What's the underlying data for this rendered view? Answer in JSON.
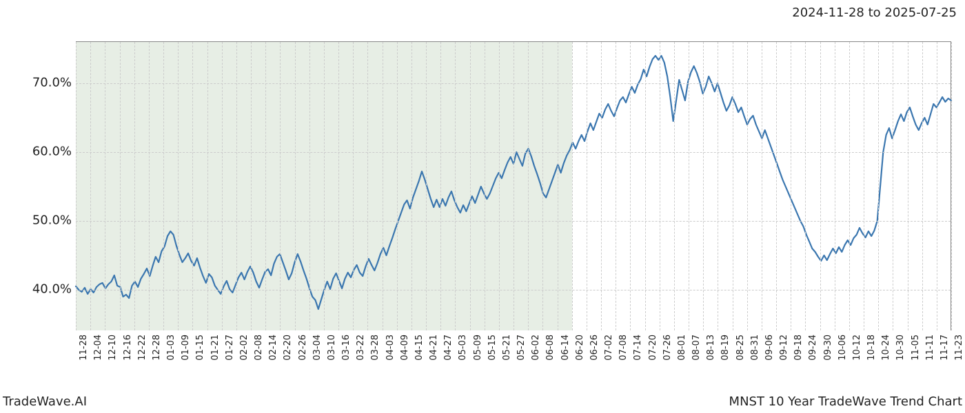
{
  "header": {
    "date_range": "2024-11-28 to 2025-07-25"
  },
  "footer": {
    "left": "TradeWave.AI",
    "right": "MNST 10 Year TradeWave Trend Chart"
  },
  "chart": {
    "type": "line",
    "background_color": "#ffffff",
    "grid_color": "#cccccc",
    "grid_dash": "3,3",
    "line_color": "#3a76af",
    "line_width": 2.2,
    "shaded_region": {
      "start_index": 0,
      "end_index": 34,
      "fill": "rgba(120,160,110,0.18)"
    },
    "ylim": [
      34,
      76
    ],
    "yticks": [
      40,
      50,
      60,
      70
    ],
    "ytick_labels": [
      "40.0%",
      "50.0%",
      "60.0%",
      "70.0%"
    ],
    "ylabel_fontsize": 18,
    "xtick_labels": [
      "11-28",
      "12-04",
      "12-10",
      "12-16",
      "12-22",
      "12-28",
      "01-03",
      "01-09",
      "01-15",
      "01-21",
      "01-27",
      "02-02",
      "02-08",
      "02-14",
      "02-20",
      "02-26",
      "03-04",
      "03-10",
      "03-16",
      "03-22",
      "03-28",
      "04-03",
      "04-09",
      "04-15",
      "04-21",
      "04-27",
      "05-03",
      "05-09",
      "05-15",
      "05-21",
      "05-27",
      "06-02",
      "06-08",
      "06-14",
      "06-20",
      "06-26",
      "07-02",
      "07-08",
      "07-14",
      "07-20",
      "07-26",
      "08-01",
      "08-07",
      "08-13",
      "08-19",
      "08-25",
      "08-31",
      "09-06",
      "09-12",
      "09-18",
      "09-24",
      "09-30",
      "10-06",
      "10-12",
      "10-18",
      "10-24",
      "10-30",
      "11-05",
      "11-11",
      "11-17",
      "11-23"
    ],
    "xtick_fontsize": 13,
    "title_fontsize": 18,
    "series": [
      40.5,
      40.0,
      39.7,
      40.3,
      39.4,
      40.1,
      39.6,
      40.4,
      40.8,
      41.0,
      40.2,
      40.8,
      41.2,
      42.1,
      40.6,
      40.4,
      39.0,
      39.3,
      38.8,
      40.6,
      41.2,
      40.4,
      41.6,
      42.3,
      43.1,
      42.0,
      43.5,
      44.8,
      44.0,
      45.6,
      46.3,
      47.8,
      48.5,
      48.0,
      46.4,
      45.1,
      44.0,
      44.6,
      45.3,
      44.2,
      43.5,
      44.6,
      43.2,
      42.0,
      41.0,
      42.3,
      41.8,
      40.6,
      40.0,
      39.4,
      40.5,
      41.3,
      40.1,
      39.6,
      40.7,
      41.8,
      42.5,
      41.5,
      42.6,
      43.4,
      42.5,
      41.2,
      40.3,
      41.5,
      42.6,
      43.0,
      42.1,
      43.8,
      44.8,
      45.2,
      44.0,
      42.8,
      41.5,
      42.4,
      44.0,
      45.2,
      44.1,
      42.8,
      41.6,
      40.2,
      39.0,
      38.5,
      37.2,
      38.6,
      40.0,
      41.2,
      40.1,
      41.6,
      42.4,
      41.3,
      40.2,
      41.6,
      42.5,
      41.8,
      42.9,
      43.6,
      42.5,
      42.0,
      43.4,
      44.5,
      43.6,
      42.8,
      43.9,
      45.2,
      46.1,
      45.0,
      46.3,
      47.5,
      48.8,
      50.0,
      51.2,
      52.4,
      53.0,
      51.8,
      53.4,
      54.6,
      55.8,
      57.2,
      56.0,
      54.6,
      53.2,
      52.0,
      53.1,
      52.0,
      53.2,
      52.2,
      53.4,
      54.3,
      53.0,
      52.0,
      51.2,
      52.3,
      51.4,
      52.5,
      53.6,
      52.6,
      53.8,
      55.0,
      54.0,
      53.2,
      54.0,
      55.1,
      56.2,
      57.0,
      56.2,
      57.4,
      58.5,
      59.3,
      58.3,
      60.0,
      59.0,
      58.0,
      59.8,
      60.5,
      59.4,
      58.0,
      56.8,
      55.5,
      54.0,
      53.4,
      54.6,
      55.8,
      57.0,
      58.2,
      57.0,
      58.4,
      59.5,
      60.3,
      61.4,
      60.5,
      61.6,
      62.5,
      61.6,
      63.0,
      64.2,
      63.2,
      64.4,
      65.6,
      65.0,
      66.2,
      67.0,
      66.0,
      65.2,
      66.4,
      67.5,
      68.0,
      67.2,
      68.4,
      69.5,
      68.6,
      69.8,
      70.6,
      72.0,
      71.0,
      72.4,
      73.5,
      74.0,
      73.4,
      74.0,
      73.0,
      71.0,
      68.0,
      64.5,
      67.5,
      70.5,
      69.0,
      67.5,
      70.2,
      71.6,
      72.5,
      71.5,
      70.2,
      68.5,
      69.5,
      71.0,
      70.0,
      68.8,
      70.0,
      68.6,
      67.2,
      66.0,
      66.8,
      68.0,
      67.0,
      65.8,
      66.5,
      65.2,
      64.0,
      64.8,
      65.3,
      64.0,
      63.0,
      62.0,
      63.2,
      62.0,
      60.8,
      59.6,
      58.4,
      57.2,
      56.0,
      55.0,
      54.0,
      53.0,
      52.0,
      51.0,
      50.0,
      49.2,
      48.0,
      47.0,
      46.0,
      45.5,
      44.8,
      44.2,
      45.0,
      44.3,
      45.2,
      46.0,
      45.3,
      46.2,
      45.5,
      46.5,
      47.2,
      46.5,
      47.5,
      48.0,
      49.0,
      48.2,
      47.6,
      48.5,
      47.8,
      48.6,
      50.0,
      55.0,
      60.0,
      62.5,
      63.5,
      62.0,
      63.2,
      64.5,
      65.5,
      64.5,
      65.8,
      66.5,
      65.2,
      64.0,
      63.2,
      64.2,
      65.0,
      64.0,
      65.5,
      67.0,
      66.5,
      67.2,
      68.0,
      67.3,
      67.8,
      67.5
    ]
  }
}
